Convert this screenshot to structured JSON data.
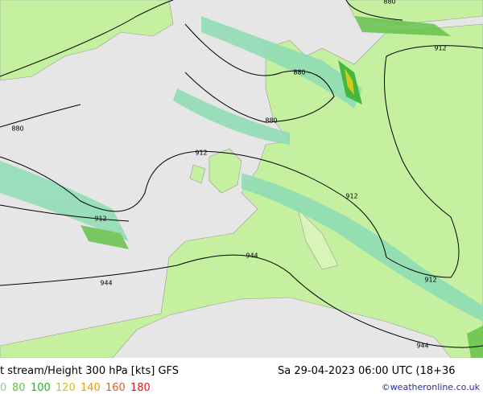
{
  "header": {
    "title": "t stream/Height 300 hPa [kts] GFS",
    "datetime": "Sa 29-04-2023 06:00 UTC (18+36"
  },
  "legend": {
    "labels": [
      "0",
      "80",
      "100",
      "120",
      "140",
      "160",
      "180"
    ],
    "colors": [
      "#8ccc8c",
      "#66c24a",
      "#2fae2f",
      "#d8c400",
      "#ec9a00",
      "#ec5a10",
      "#d81c1c"
    ]
  },
  "credit": "©weatheronline.co.uk",
  "map": {
    "contour_labels": [
      "880",
      "880",
      "880",
      "880",
      "912",
      "912",
      "912",
      "912",
      "912",
      "944",
      "944",
      "944"
    ]
  }
}
